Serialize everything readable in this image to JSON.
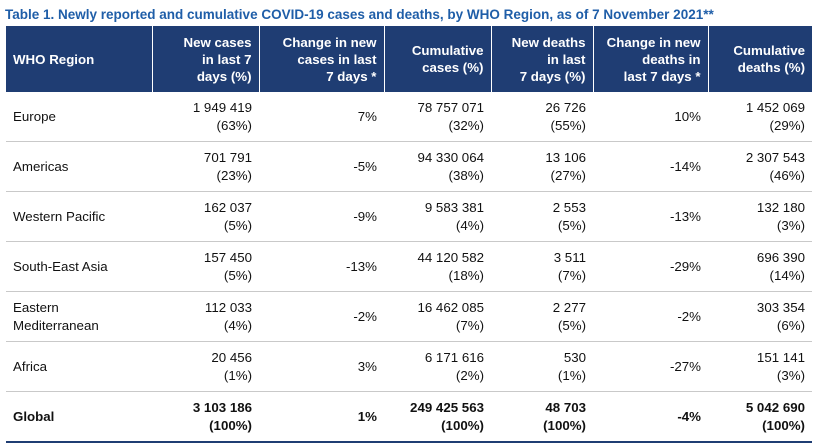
{
  "caption": "Table 1. Newly reported and cumulative COVID-19 cases and deaths, by WHO Region, as of 7 November 2021**",
  "colors": {
    "header_bg": "#1f3d73",
    "caption": "#1f5ea8"
  },
  "columns": [
    {
      "l1": "WHO Region",
      "l2": "",
      "l3": ""
    },
    {
      "l1": "New cases",
      "l2": "in last 7",
      "l3": "days (%)"
    },
    {
      "l1": "Change in new",
      "l2": "cases in last",
      "l3": "7 days *"
    },
    {
      "l1": "Cumulative",
      "l2": "cases (%)",
      "l3": ""
    },
    {
      "l1": "New deaths",
      "l2": "in last",
      "l3": "7 days (%)"
    },
    {
      "l1": "Change in new",
      "l2": "deaths in",
      "l3": "last 7 days *"
    },
    {
      "l1": "Cumulative",
      "l2": "deaths (%)",
      "l3": ""
    }
  ],
  "rows": [
    {
      "region": [
        "Europe",
        ""
      ],
      "new_cases": "1 949 419",
      "new_cases_pct": "(63%)",
      "change_cases": "7%",
      "cum_cases": "78 757 071",
      "cum_cases_pct": "(32%)",
      "new_deaths": "26 726",
      "new_deaths_pct": "(55%)",
      "change_deaths": "10%",
      "cum_deaths": "1 452 069",
      "cum_deaths_pct": "(29%)"
    },
    {
      "region": [
        "Americas",
        ""
      ],
      "new_cases": "701 791",
      "new_cases_pct": "(23%)",
      "change_cases": "-5%",
      "cum_cases": "94 330 064",
      "cum_cases_pct": "(38%)",
      "new_deaths": "13 106",
      "new_deaths_pct": "(27%)",
      "change_deaths": "-14%",
      "cum_deaths": "2 307 543",
      "cum_deaths_pct": "(46%)"
    },
    {
      "region": [
        "Western Pacific",
        ""
      ],
      "new_cases": "162 037",
      "new_cases_pct": "(5%)",
      "change_cases": "-9%",
      "cum_cases": "9 583 381",
      "cum_cases_pct": "(4%)",
      "new_deaths": "2 553",
      "new_deaths_pct": "(5%)",
      "change_deaths": "-13%",
      "cum_deaths": "132 180",
      "cum_deaths_pct": "(3%)"
    },
    {
      "region": [
        "South-East Asia",
        ""
      ],
      "new_cases": "157 450",
      "new_cases_pct": "(5%)",
      "change_cases": "-13%",
      "cum_cases": "44 120 582",
      "cum_cases_pct": "(18%)",
      "new_deaths": "3 511",
      "new_deaths_pct": "(7%)",
      "change_deaths": "-29%",
      "cum_deaths": "696 390",
      "cum_deaths_pct": "(14%)"
    },
    {
      "region": [
        "Eastern",
        "Mediterranean"
      ],
      "new_cases": "112 033",
      "new_cases_pct": "(4%)",
      "change_cases": "-2%",
      "cum_cases": "16 462 085",
      "cum_cases_pct": "(7%)",
      "new_deaths": "2 277",
      "new_deaths_pct": "(5%)",
      "change_deaths": "-2%",
      "cum_deaths": "303 354",
      "cum_deaths_pct": "(6%)"
    },
    {
      "region": [
        "Africa",
        ""
      ],
      "new_cases": "20 456",
      "new_cases_pct": "(1%)",
      "change_cases": "3%",
      "cum_cases": "6 171 616",
      "cum_cases_pct": "(2%)",
      "new_deaths": "530",
      "new_deaths_pct": "(1%)",
      "change_deaths": "-27%",
      "cum_deaths": "151 141",
      "cum_deaths_pct": "(3%)"
    }
  ],
  "global": {
    "region": "Global",
    "new_cases": "3 103 186",
    "new_cases_pct": "(100%)",
    "change_cases": "1%",
    "cum_cases": "249 425 563",
    "cum_cases_pct": "(100%)",
    "new_deaths": "48 703",
    "new_deaths_pct": "(100%)",
    "change_deaths": "-4%",
    "cum_deaths": "5 042 690",
    "cum_deaths_pct": "(100%)"
  }
}
